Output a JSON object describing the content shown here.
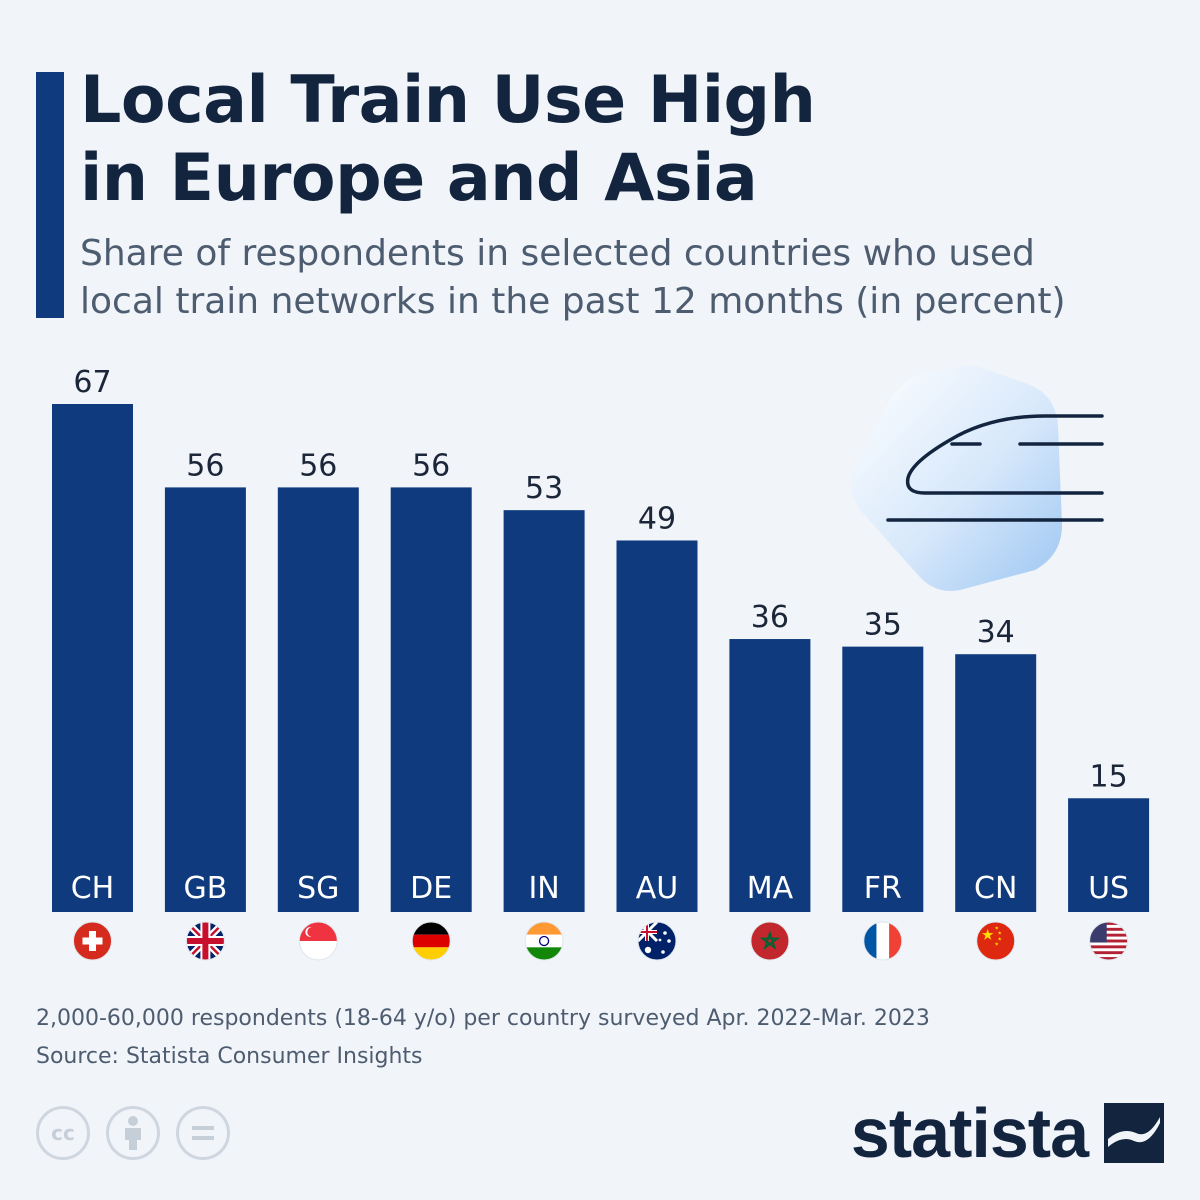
{
  "header": {
    "title_line1": "Local Train Use High",
    "title_line2": "in Europe and Asia",
    "subtitle_line1": "Share of respondents in selected countries who used",
    "subtitle_line2": "local train networks in the past 12 months (in percent)"
  },
  "chart_data": {
    "type": "bar",
    "title": "Local Train Use High in Europe and Asia",
    "subtitle": "Share of respondents in selected countries who used local train networks in the past 12 months (in percent)",
    "categories": [
      "CH",
      "GB",
      "SG",
      "DE",
      "IN",
      "AU",
      "MA",
      "FR",
      "CN",
      "US"
    ],
    "values": [
      67,
      56,
      56,
      56,
      53,
      49,
      36,
      35,
      34,
      15
    ],
    "ylim": [
      0,
      67
    ],
    "grid": false,
    "bar_color": "#0f3a7d"
  },
  "flags": [
    "CH",
    "GB",
    "SG",
    "DE",
    "IN",
    "AU",
    "MA",
    "FR",
    "CN",
    "US"
  ],
  "footnote": {
    "note": "2,000-60,000 respondents (18-64 y/o) per country surveyed Apr. 2022-Mar. 2023",
    "source": "Source: Statista Consumer Insights"
  },
  "license": {
    "cc_label": "cc",
    "icons": [
      "creative-commons-icon",
      "attribution-icon",
      "no-derivatives-icon"
    ]
  },
  "brand": {
    "name": "statista",
    "color": "#13243f"
  },
  "colors": {
    "background": "#f1f5fa",
    "accent": "#0f3a7d",
    "title": "#13243f",
    "subtitle": "#4e5c70"
  }
}
